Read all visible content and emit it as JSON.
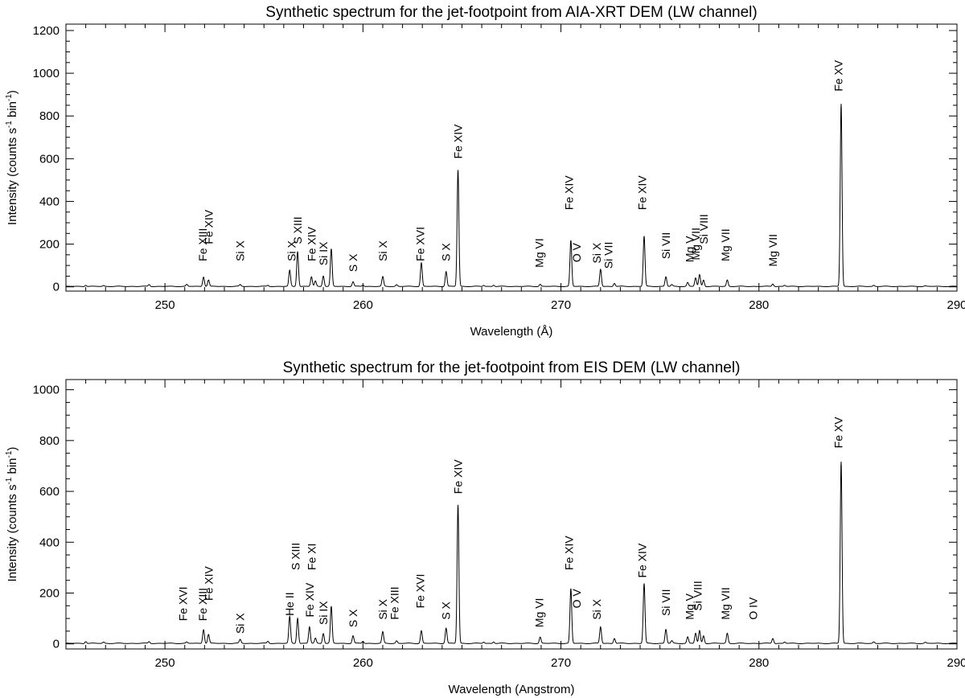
{
  "chart_data": [
    {
      "type": "line",
      "title": "Synthetic spectrum for the jet-footpoint from AIA-XRT DEM (LW channel)",
      "xlabel": "Wavelength (Å)",
      "ylabel_parts": [
        "Intensity (counts s",
        "-1",
        " bin",
        "-1",
        ")"
      ],
      "xlim": [
        245,
        290
      ],
      "ylim": [
        -20,
        1230
      ],
      "xticks": [
        250,
        260,
        270,
        280,
        290
      ],
      "yticks": [
        0,
        200,
        400,
        600,
        800,
        1000,
        1200
      ],
      "grid": false,
      "peaks": [
        {
          "x": 246.0,
          "y": 6
        },
        {
          "x": 246.9,
          "y": 4
        },
        {
          "x": 249.2,
          "y": 9
        },
        {
          "x": 251.1,
          "y": 9
        },
        {
          "x": 251.95,
          "y": 45
        },
        {
          "x": 252.2,
          "y": 30
        },
        {
          "x": 253.8,
          "y": 8
        },
        {
          "x": 255.2,
          "y": 5
        },
        {
          "x": 256.3,
          "y": 75
        },
        {
          "x": 256.7,
          "y": 165
        },
        {
          "x": 257.4,
          "y": 45
        },
        {
          "x": 257.6,
          "y": 25
        },
        {
          "x": 258.0,
          "y": 50
        },
        {
          "x": 258.4,
          "y": 175
        },
        {
          "x": 259.5,
          "y": 22
        },
        {
          "x": 260.0,
          "y": 6
        },
        {
          "x": 261.0,
          "y": 45
        },
        {
          "x": 261.7,
          "y": 8
        },
        {
          "x": 262.95,
          "y": 110
        },
        {
          "x": 264.2,
          "y": 70
        },
        {
          "x": 264.8,
          "y": 545
        },
        {
          "x": 266.1,
          "y": 5
        },
        {
          "x": 266.6,
          "y": 6
        },
        {
          "x": 268.95,
          "y": 10
        },
        {
          "x": 270.5,
          "y": 215
        },
        {
          "x": 272.0,
          "y": 80
        },
        {
          "x": 272.7,
          "y": 15
        },
        {
          "x": 274.2,
          "y": 235
        },
        {
          "x": 275.3,
          "y": 45
        },
        {
          "x": 275.6,
          "y": 8
        },
        {
          "x": 276.4,
          "y": 18
        },
        {
          "x": 276.8,
          "y": 40
        },
        {
          "x": 277.0,
          "y": 55
        },
        {
          "x": 277.2,
          "y": 30
        },
        {
          "x": 278.4,
          "y": 30
        },
        {
          "x": 280.7,
          "y": 12
        },
        {
          "x": 281.3,
          "y": 5
        },
        {
          "x": 284.15,
          "y": 855
        },
        {
          "x": 285.8,
          "y": 5
        },
        {
          "x": 288.4,
          "y": 3
        }
      ],
      "annotations": [
        {
          "text": "Fe XIII",
          "x": 251.9,
          "y": 120
        },
        {
          "text": "Fe XIV",
          "x": 252.2,
          "y": 200
        },
        {
          "text": "Si X",
          "x": 253.8,
          "y": 120
        },
        {
          "text": "Si X",
          "x": 256.4,
          "y": 120
        },
        {
          "text": "S XIII",
          "x": 256.7,
          "y": 200
        },
        {
          "text": "Fe XIV",
          "x": 257.4,
          "y": 120
        },
        {
          "text": "Si IX",
          "x": 258.0,
          "y": 100
        },
        {
          "text": "S X",
          "x": 259.5,
          "y": 70
        },
        {
          "text": "Si X",
          "x": 261.0,
          "y": 120
        },
        {
          "text": "Fe XVI",
          "x": 262.9,
          "y": 120
        },
        {
          "text": "S X",
          "x": 264.2,
          "y": 120
        },
        {
          "text": "Fe XIV",
          "x": 264.8,
          "y": 600
        },
        {
          "text": "Mg VI",
          "x": 268.9,
          "y": 90
        },
        {
          "text": "Fe XIV",
          "x": 270.4,
          "y": 360
        },
        {
          "text": "O V",
          "x": 270.8,
          "y": 115
        },
        {
          "text": "Si X",
          "x": 271.8,
          "y": 110
        },
        {
          "text": "Si VII",
          "x": 272.4,
          "y": 85
        },
        {
          "text": "Fe XIV",
          "x": 274.1,
          "y": 360
        },
        {
          "text": "Si VII",
          "x": 275.3,
          "y": 130
        },
        {
          "text": "Mg V",
          "x": 276.5,
          "y": 115
        },
        {
          "text": "Mg VII",
          "x": 276.8,
          "y": 125
        },
        {
          "text": "Si VIII",
          "x": 277.2,
          "y": 200
        },
        {
          "text": "Mg VII",
          "x": 278.3,
          "y": 120
        },
        {
          "text": "Mg VII",
          "x": 280.7,
          "y": 95
        },
        {
          "text": "Fe XV",
          "x": 284.0,
          "y": 915
        }
      ]
    },
    {
      "type": "line",
      "title": "Synthetic spectrum for the jet-footpoint from EIS DEM (LW channel)",
      "xlabel": "Wavelength (Angstrom)",
      "ylabel_parts": [
        "Intensity (counts s",
        "-1",
        " bin",
        "-1",
        ")"
      ],
      "xlim": [
        245,
        290
      ],
      "ylim": [
        -20,
        1040
      ],
      "xticks": [
        250,
        260,
        270,
        280,
        290
      ],
      "yticks": [
        0,
        200,
        400,
        600,
        800,
        1000
      ],
      "grid": false,
      "peaks": [
        {
          "x": 246.0,
          "y": 8
        },
        {
          "x": 246.9,
          "y": 5
        },
        {
          "x": 249.2,
          "y": 7
        },
        {
          "x": 251.1,
          "y": 5
        },
        {
          "x": 251.95,
          "y": 55
        },
        {
          "x": 252.2,
          "y": 35
        },
        {
          "x": 253.8,
          "y": 15
        },
        {
          "x": 255.2,
          "y": 8
        },
        {
          "x": 256.3,
          "y": 105
        },
        {
          "x": 256.7,
          "y": 100
        },
        {
          "x": 257.3,
          "y": 65
        },
        {
          "x": 257.6,
          "y": 20
        },
        {
          "x": 258.0,
          "y": 40
        },
        {
          "x": 258.4,
          "y": 145
        },
        {
          "x": 259.5,
          "y": 30
        },
        {
          "x": 260.0,
          "y": 8
        },
        {
          "x": 261.0,
          "y": 45
        },
        {
          "x": 261.7,
          "y": 10
        },
        {
          "x": 262.95,
          "y": 50
        },
        {
          "x": 264.2,
          "y": 60
        },
        {
          "x": 264.8,
          "y": 545
        },
        {
          "x": 266.1,
          "y": 5
        },
        {
          "x": 266.6,
          "y": 6
        },
        {
          "x": 268.95,
          "y": 25
        },
        {
          "x": 270.5,
          "y": 215
        },
        {
          "x": 272.0,
          "y": 65
        },
        {
          "x": 272.7,
          "y": 20
        },
        {
          "x": 274.2,
          "y": 235
        },
        {
          "x": 275.3,
          "y": 55
        },
        {
          "x": 275.6,
          "y": 10
        },
        {
          "x": 276.4,
          "y": 25
        },
        {
          "x": 276.8,
          "y": 40
        },
        {
          "x": 277.0,
          "y": 50
        },
        {
          "x": 277.2,
          "y": 30
        },
        {
          "x": 278.4,
          "y": 40
        },
        {
          "x": 280.7,
          "y": 20
        },
        {
          "x": 281.3,
          "y": 5
        },
        {
          "x": 284.15,
          "y": 715
        },
        {
          "x": 285.8,
          "y": 6
        },
        {
          "x": 288.4,
          "y": 4
        }
      ],
      "annotations": [
        {
          "text": "Fe XVI",
          "x": 250.9,
          "y": 90
        },
        {
          "text": "Fe XIII",
          "x": 251.9,
          "y": 90
        },
        {
          "text": "Fe XIV",
          "x": 252.2,
          "y": 170
        },
        {
          "text": "Si X",
          "x": 253.8,
          "y": 40
        },
        {
          "text": "He II",
          "x": 256.3,
          "y": 110
        },
        {
          "text": "S XIII",
          "x": 256.6,
          "y": 290
        },
        {
          "text": "Fe XI",
          "x": 257.4,
          "y": 290
        },
        {
          "text": "Fe XIV",
          "x": 257.3,
          "y": 105
        },
        {
          "text": "Si IX",
          "x": 258.0,
          "y": 75
        },
        {
          "text": "S X",
          "x": 259.5,
          "y": 65
        },
        {
          "text": "Si X",
          "x": 261.0,
          "y": 95
        },
        {
          "text": "Fe XIII",
          "x": 261.6,
          "y": 95
        },
        {
          "text": "Fe XVI",
          "x": 262.9,
          "y": 140
        },
        {
          "text": "S X",
          "x": 264.2,
          "y": 95
        },
        {
          "text": "Fe XIV",
          "x": 264.8,
          "y": 590
        },
        {
          "text": "Mg VI",
          "x": 268.9,
          "y": 65
        },
        {
          "text": "Fe XIV",
          "x": 270.4,
          "y": 290
        },
        {
          "text": "O V",
          "x": 270.8,
          "y": 140
        },
        {
          "text": "Si X",
          "x": 271.8,
          "y": 95
        },
        {
          "text": "Fe XIV",
          "x": 274.1,
          "y": 260
        },
        {
          "text": "Si VII",
          "x": 275.3,
          "y": 110
        },
        {
          "text": "Mg V",
          "x": 276.5,
          "y": 95
        },
        {
          "text": "Si VIII",
          "x": 276.9,
          "y": 130
        },
        {
          "text": "Mg VII",
          "x": 278.3,
          "y": 95
        },
        {
          "text": "O IV",
          "x": 279.7,
          "y": 95
        },
        {
          "text": "Fe XV",
          "x": 284.0,
          "y": 770
        }
      ]
    }
  ]
}
